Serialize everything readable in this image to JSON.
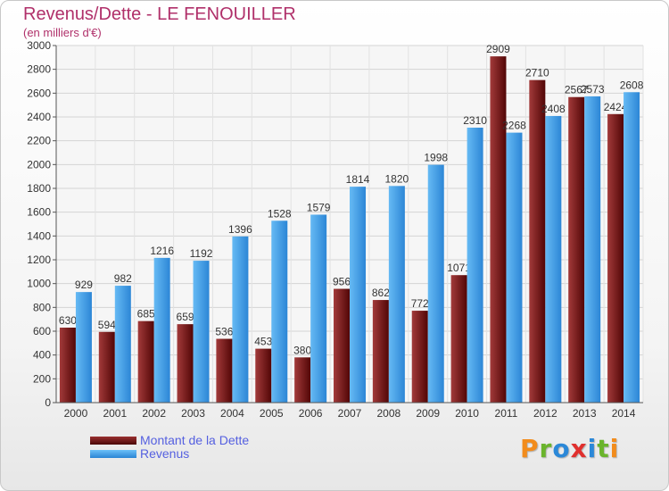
{
  "header": {
    "title": "Revenus/Dette - LE FENOUILLER",
    "subtitle": "(en milliers d'€)"
  },
  "legend": {
    "items": [
      {
        "label": "Montant de la Dette",
        "color": "#7a1818"
      },
      {
        "label": "Revenus",
        "color": "#3f9fe8"
      }
    ]
  },
  "logo": {
    "letters": [
      "P",
      "r",
      "o",
      "x",
      "i",
      "t",
      "i"
    ],
    "colors": [
      "#f28c1c",
      "#6ab42c",
      "#2b88d8",
      "#e0302e",
      "#2b88d8",
      "#6ab42c",
      "#f28c1c"
    ]
  },
  "chart_data": {
    "type": "bar",
    "title": "Revenus/Dette - LE FENOUILLER",
    "subtitle": "(en milliers d'€)",
    "categories": [
      "2000",
      "2001",
      "2002",
      "2003",
      "2004",
      "2005",
      "2006",
      "2007",
      "2008",
      "2009",
      "2010",
      "2011",
      "2012",
      "2013",
      "2014"
    ],
    "series": [
      {
        "name": "Montant de la Dette",
        "color": "#7a1818",
        "values": [
          630,
          594,
          685,
          659,
          536,
          453,
          380,
          956,
          862,
          772,
          1071,
          2909,
          2710,
          2567,
          2424
        ]
      },
      {
        "name": "Revenus",
        "color": "#3f9fe8",
        "values": [
          929,
          982,
          1216,
          1192,
          1396,
          1528,
          1579,
          1814,
          1820,
          1998,
          2310,
          2268,
          2408,
          2573,
          2608
        ]
      }
    ],
    "y_ticks": [
      "0",
      "200",
      "400",
      "600",
      "800",
      "1000",
      "1200",
      "1400",
      "1600",
      "1800",
      "2000",
      "2200",
      "2400",
      "2600",
      "2800",
      "3000"
    ],
    "data_labels": [
      [
        "630",
        "594",
        "685",
        "659",
        "536",
        "453",
        "380",
        "956",
        "862",
        "772",
        "1071",
        "2909",
        "2710",
        "2567",
        "2424"
      ],
      [
        "929",
        "982",
        "1216",
        "1192",
        "1396",
        "1528",
        "1579",
        "1814",
        "1820",
        "1998",
        "2310",
        "2268",
        "2408",
        "2573",
        "2608"
      ]
    ],
    "ylim": [
      0,
      3000
    ],
    "grid": true,
    "legend_position": "bottom-left"
  }
}
